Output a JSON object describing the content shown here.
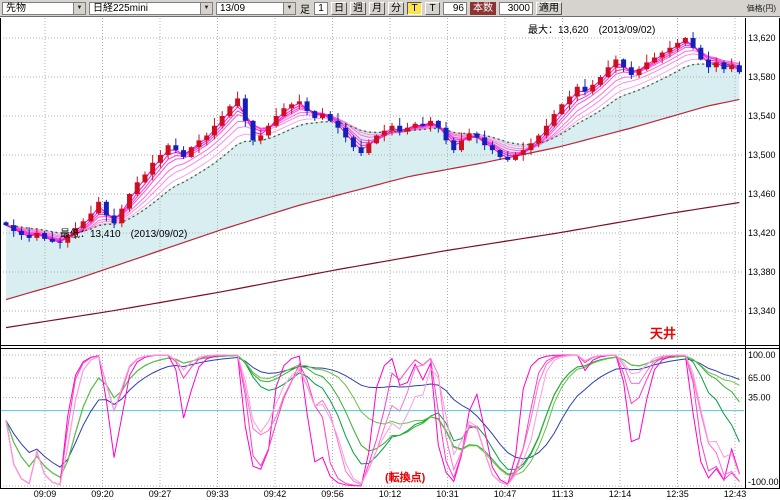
{
  "toolbar": {
    "instrument": "先物",
    "symbol": "日経225mini",
    "contract": "13/09",
    "timeframe_label": "足",
    "minute_value": "1",
    "day": "日",
    "week": "週",
    "month": "月",
    "minute": "分",
    "tick": "T",
    "t2": "T",
    "bars_value": "96",
    "bars_label": "本数",
    "interval_value": "3000",
    "apply": "適用",
    "unit_label": "価格(円)"
  },
  "annotations": {
    "max_label": "最大：13,620　(2013/09/02)",
    "min_label": "最低：13,410　(2013/09/02)",
    "ceiling": "天井",
    "turning_point": "(転換点)"
  },
  "chart_data": {
    "type": "candlestick",
    "instrument": "日経225mini 13/09",
    "times": [
      "09:09",
      "09:20",
      "09:27",
      "09:33",
      "09:42",
      "09:56",
      "10:12",
      "10:31",
      "10:47",
      "11:13",
      "12:14",
      "12:35",
      "12:43"
    ],
    "y_axis": {
      "labels": [
        "13,620",
        "13,580",
        "13,540",
        "13,500",
        "13,460",
        "13,420",
        "13,380",
        "13,340"
      ],
      "values": [
        13620,
        13580,
        13540,
        13500,
        13460,
        13420,
        13380,
        13340
      ]
    },
    "lower_y_axis": {
      "labels": [
        "100.00",
        "65.00",
        "35.00",
        "-100.00"
      ],
      "values": [
        100,
        65,
        35,
        -100
      ],
      "range": [
        -100,
        100
      ],
      "threshold_line": 15
    },
    "noted_high": 13620,
    "noted_low": 13410,
    "closes": [
      13428,
      13422,
      13418,
      13415,
      13420,
      13414,
      13411,
      13410,
      13418,
      13425,
      13432,
      13440,
      13452,
      13438,
      13430,
      13445,
      13460,
      13472,
      13480,
      13492,
      13500,
      13510,
      13505,
      13498,
      13508,
      13515,
      13520,
      13530,
      13540,
      13550,
      13558,
      13535,
      13515,
      13520,
      13530,
      13540,
      13548,
      13552,
      13555,
      13545,
      13538,
      13542,
      13535,
      13528,
      13518,
      13508,
      13502,
      13512,
      13520,
      13525,
      13530,
      13524,
      13528,
      13532,
      13530,
      13535,
      13528,
      13515,
      13505,
      13515,
      13522,
      13518,
      13510,
      13505,
      13498,
      13495,
      13500,
      13505,
      13512,
      13520,
      13530,
      13542,
      13552,
      13560,
      13570,
      13565,
      13572,
      13580,
      13590,
      13598,
      13590,
      13582,
      13588,
      13595,
      13600,
      13605,
      13610,
      13615,
      13620,
      13610,
      13598,
      13590,
      13595,
      13588,
      13592,
      13585
    ],
    "overlays": {
      "ribbon_periods": [
        2,
        3,
        4,
        5,
        7,
        9,
        12,
        15
      ],
      "green_ma_period": 15,
      "long_ma1": [
        [
          0,
          13350
        ],
        [
          0.1,
          13372
        ],
        [
          0.2,
          13398
        ],
        [
          0.3,
          13424
        ],
        [
          0.4,
          13448
        ],
        [
          0.5,
          13468
        ],
        [
          0.55,
          13478
        ],
        [
          0.65,
          13492
        ],
        [
          0.75,
          13508
        ],
        [
          0.85,
          13528
        ],
        [
          0.95,
          13550
        ],
        [
          1,
          13558
        ]
      ],
      "long_ma2": [
        [
          0,
          13322
        ],
        [
          0.15,
          13340
        ],
        [
          0.3,
          13360
        ],
        [
          0.45,
          13382
        ],
        [
          0.6,
          13402
        ],
        [
          0.75,
          13420
        ],
        [
          0.9,
          13440
        ],
        [
          1,
          13452
        ]
      ]
    },
    "lower_indicator": {
      "magenta_periods": [
        5,
        8,
        11,
        14
      ],
      "green_periods": [
        18,
        24,
        30
      ],
      "blue_period": 42
    },
    "colors": {
      "up": "#cc1022",
      "down": "#1420bb",
      "cloud": "#d9eef0",
      "ribbon_from": [
        255,
        0,
        204
      ],
      "ribbon_to": [
        255,
        190,
        235
      ],
      "long1": "#b92736",
      "long2": "#7a1020",
      "green": "#008833",
      "cyan": "#55c8c8",
      "blue": "#2b3fae",
      "magenta": [
        "#ff00cc",
        "#ff3dc2",
        "#ff6fd2",
        "#ff9ade"
      ],
      "greens": [
        "#00a040",
        "#2fb12f",
        "#63c24a"
      ],
      "annotation_red": "#ee0000",
      "grid": "#b0b0b0"
    }
  }
}
